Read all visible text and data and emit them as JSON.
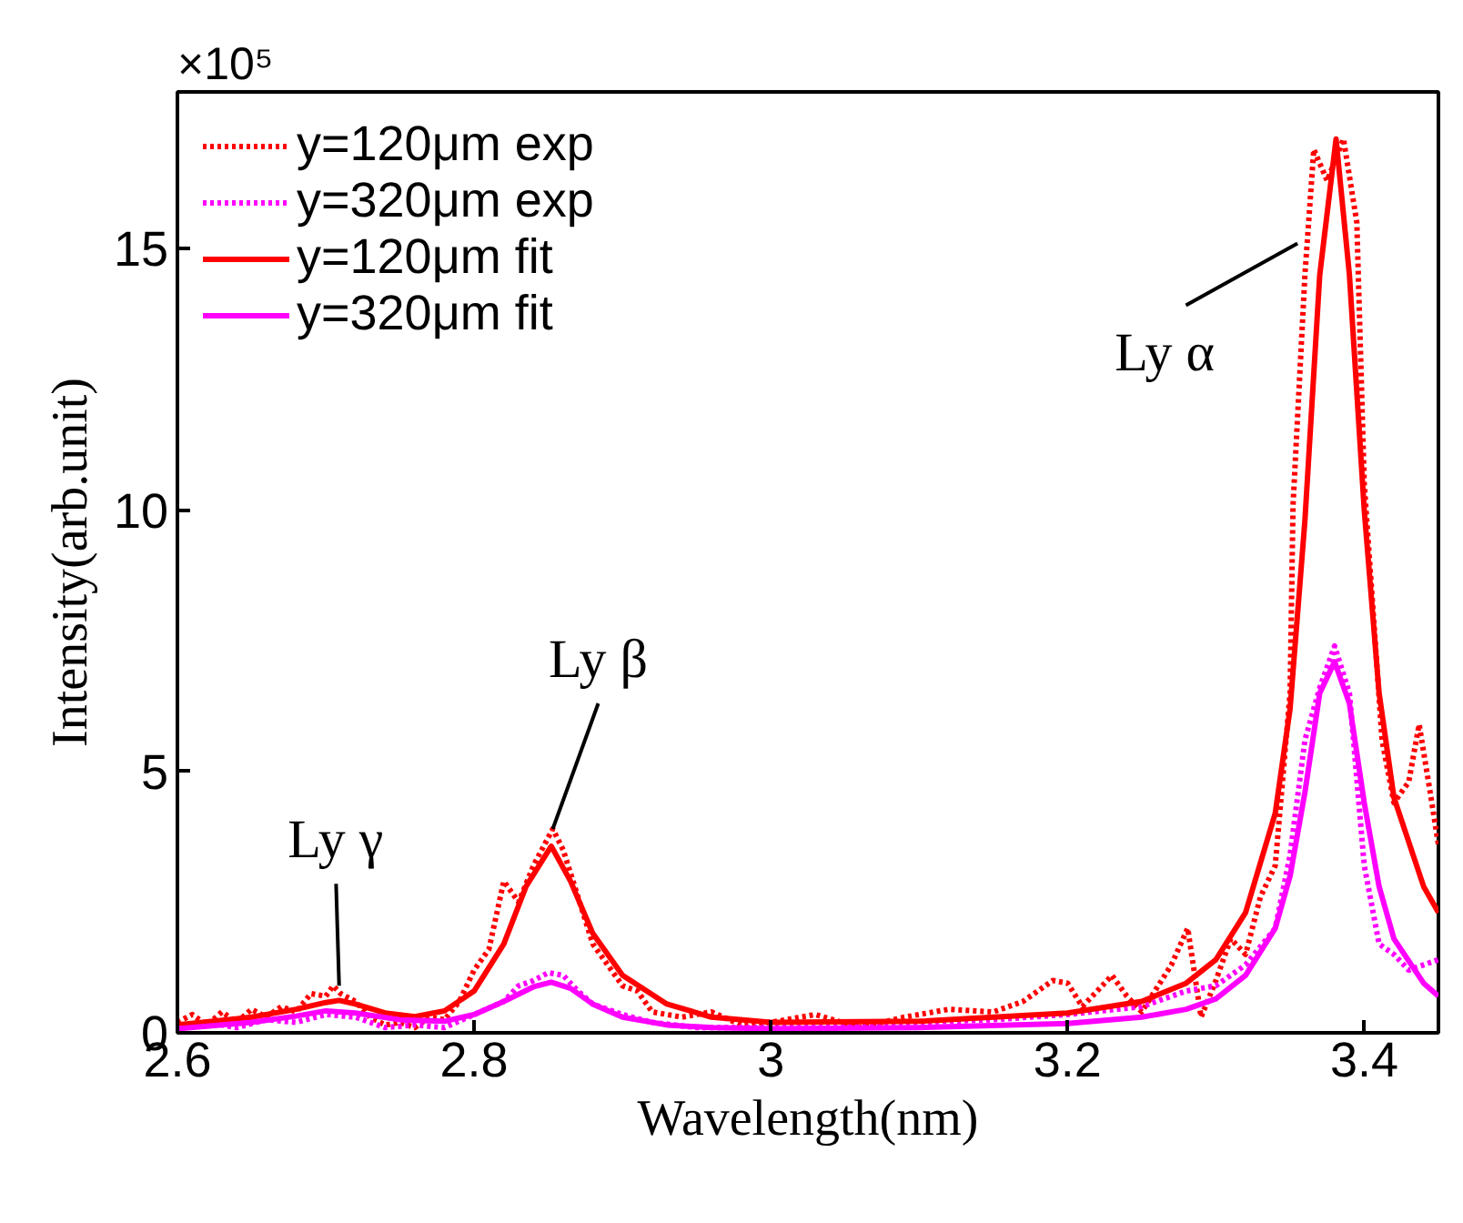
{
  "chart_data": {
    "type": "line",
    "xlabel": "Wavelength(nm)",
    "ylabel": "Intensity(arb.unit)",
    "xlim": [
      2.6,
      3.45
    ],
    "xticks": [
      2.6,
      2.8,
      3,
      3.2,
      3.4
    ],
    "ylim": [
      0,
      18
    ],
    "yticks": [
      0,
      5,
      10,
      15
    ],
    "grid": false,
    "legend": "top left",
    "annotations": [
      "×10⁵",
      {
        "text": "Ly γ",
        "x": 2.709,
        "y": 0.9
      },
      {
        "text": "Ly β",
        "x": 2.853,
        "y": 3.9
      },
      {
        "text": "Ly α",
        "x": 3.355,
        "y": 15.1
      }
    ],
    "series": [
      {
        "name": "y=120μm exp",
        "color": "#ff0000",
        "line_style": "dotted",
        "x": [
          2.6,
          2.61,
          2.62,
          2.63,
          2.64,
          2.65,
          2.66,
          2.67,
          2.68,
          2.69,
          2.7,
          2.705,
          2.71,
          2.72,
          2.73,
          2.74,
          2.75,
          2.76,
          2.77,
          2.78,
          2.79,
          2.8,
          2.81,
          2.82,
          2.83,
          2.84,
          2.853,
          2.86,
          2.87,
          2.88,
          2.89,
          2.9,
          2.91,
          2.92,
          2.94,
          2.96,
          2.98,
          3.0,
          3.03,
          3.06,
          3.09,
          3.12,
          3.15,
          3.17,
          3.19,
          3.2,
          3.21,
          3.23,
          3.24,
          3.25,
          3.27,
          3.281,
          3.29,
          3.3,
          3.31,
          3.32,
          3.33,
          3.34,
          3.35,
          3.352,
          3.36,
          3.366,
          3.375,
          3.386,
          3.395,
          3.4,
          3.412,
          3.42,
          3.43,
          3.437,
          3.445,
          3.45
        ],
        "values": [
          0.2,
          0.35,
          0.15,
          0.4,
          0.2,
          0.45,
          0.3,
          0.5,
          0.4,
          0.75,
          0.7,
          0.9,
          0.75,
          0.6,
          0.3,
          0.15,
          0.2,
          0.1,
          0.3,
          0.25,
          0.6,
          1.2,
          1.6,
          2.9,
          2.5,
          3.2,
          3.9,
          3.5,
          2.6,
          1.7,
          1.3,
          0.9,
          0.8,
          0.4,
          0.3,
          0.4,
          0.15,
          0.2,
          0.35,
          0.1,
          0.3,
          0.45,
          0.4,
          0.6,
          1.0,
          0.95,
          0.5,
          1.1,
          0.7,
          0.4,
          1.3,
          2.0,
          0.3,
          1.0,
          1.8,
          1.5,
          2.6,
          3.2,
          6.5,
          10.1,
          14.5,
          16.9,
          16.3,
          17.1,
          15.5,
          10.5,
          5.6,
          4.4,
          4.8,
          5.9,
          4.5,
          3.6
        ]
      },
      {
        "name": "y=320μm exp",
        "color": "#ff00ff",
        "line_style": "dotted",
        "x": [
          2.6,
          2.62,
          2.64,
          2.66,
          2.68,
          2.7,
          2.72,
          2.74,
          2.76,
          2.78,
          2.8,
          2.82,
          2.83,
          2.84,
          2.85,
          2.86,
          2.87,
          2.88,
          2.9,
          2.92,
          2.95,
          3.0,
          3.05,
          3.1,
          3.15,
          3.2,
          3.25,
          3.28,
          3.3,
          3.32,
          3.34,
          3.35,
          3.36,
          3.37,
          3.38,
          3.39,
          3.4,
          3.41,
          3.42,
          3.43,
          3.44,
          3.45
        ],
        "values": [
          0.1,
          0.2,
          0.1,
          0.25,
          0.2,
          0.35,
          0.3,
          0.1,
          0.15,
          0.1,
          0.35,
          0.6,
          0.9,
          1.0,
          1.15,
          1.1,
          0.8,
          0.55,
          0.35,
          0.2,
          0.1,
          0.1,
          0.15,
          0.2,
          0.25,
          0.35,
          0.5,
          0.8,
          0.9,
          1.3,
          2.0,
          3.4,
          5.6,
          6.6,
          7.4,
          6.5,
          3.2,
          1.7,
          1.5,
          1.2,
          1.3,
          1.4
        ]
      },
      {
        "name": "y=120μm fit",
        "color": "#ff0000",
        "line_style": "solid",
        "x": [
          2.6,
          2.65,
          2.68,
          2.7,
          2.709,
          2.72,
          2.74,
          2.76,
          2.78,
          2.8,
          2.82,
          2.835,
          2.852,
          2.865,
          2.88,
          2.9,
          2.93,
          2.96,
          3.0,
          3.1,
          3.2,
          3.25,
          3.28,
          3.3,
          3.32,
          3.34,
          3.35,
          3.36,
          3.37,
          3.381,
          3.39,
          3.4,
          3.41,
          3.42,
          3.44,
          3.45
        ],
        "values": [
          0.15,
          0.3,
          0.45,
          0.58,
          0.62,
          0.55,
          0.38,
          0.31,
          0.42,
          0.8,
          1.7,
          2.8,
          3.57,
          2.9,
          1.9,
          1.1,
          0.55,
          0.3,
          0.2,
          0.22,
          0.38,
          0.6,
          0.95,
          1.4,
          2.3,
          4.2,
          6.2,
          9.8,
          14.5,
          17.1,
          14.5,
          10.0,
          6.5,
          4.5,
          2.8,
          2.3
        ]
      },
      {
        "name": "y=320μm fit",
        "color": "#ff00ff",
        "line_style": "solid",
        "x": [
          2.6,
          2.65,
          2.68,
          2.7,
          2.72,
          2.75,
          2.78,
          2.8,
          2.82,
          2.84,
          2.852,
          2.865,
          2.88,
          2.9,
          2.93,
          2.96,
          3.0,
          3.1,
          3.2,
          3.25,
          3.28,
          3.3,
          3.32,
          3.34,
          3.35,
          3.36,
          3.37,
          3.38,
          3.39,
          3.4,
          3.41,
          3.42,
          3.44,
          3.45
        ],
        "values": [
          0.08,
          0.2,
          0.32,
          0.42,
          0.38,
          0.25,
          0.22,
          0.35,
          0.6,
          0.88,
          0.97,
          0.85,
          0.55,
          0.3,
          0.15,
          0.1,
          0.08,
          0.1,
          0.18,
          0.3,
          0.45,
          0.65,
          1.1,
          2.0,
          3.0,
          4.6,
          6.5,
          7.1,
          6.3,
          4.4,
          2.8,
          1.8,
          0.95,
          0.7
        ]
      }
    ]
  }
}
